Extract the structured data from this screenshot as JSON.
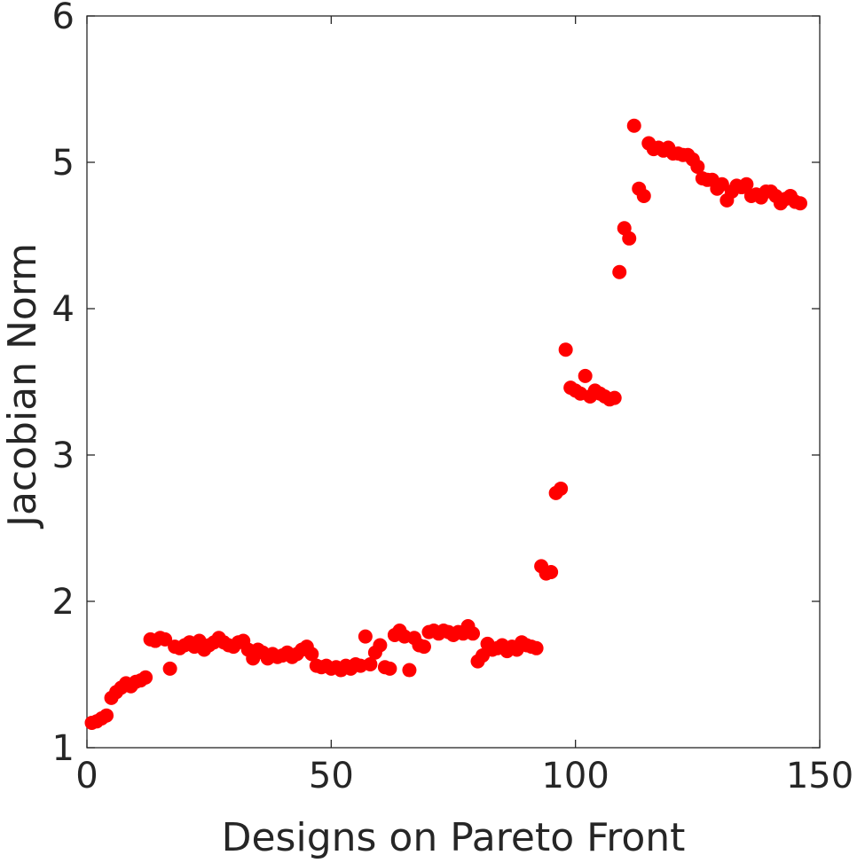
{
  "chart_data": {
    "type": "scatter",
    "title": "",
    "xlabel": "Designs on Pareto Front",
    "ylabel": "Jacobian Norm",
    "xlim": [
      0,
      150
    ],
    "ylim": [
      1,
      6
    ],
    "x_ticks": [
      0,
      50,
      100,
      150
    ],
    "y_ticks": [
      1,
      2,
      3,
      4,
      5,
      6
    ],
    "x_tick_labels": [
      "0",
      "50",
      "100",
      "150"
    ],
    "y_tick_labels": [
      "1",
      "2",
      "3",
      "4",
      "5",
      "6"
    ],
    "grid": false,
    "marker_color": "#ff0000",
    "series": [
      {
        "points": [
          [
            1,
            1.17
          ],
          [
            2,
            1.18
          ],
          [
            3,
            1.2
          ],
          [
            4,
            1.22
          ],
          [
            5,
            1.34
          ],
          [
            6,
            1.38
          ],
          [
            7,
            1.41
          ],
          [
            8,
            1.44
          ],
          [
            9,
            1.42
          ],
          [
            10,
            1.45
          ],
          [
            11,
            1.46
          ],
          [
            12,
            1.48
          ],
          [
            13,
            1.74
          ],
          [
            14,
            1.73
          ],
          [
            15,
            1.75
          ],
          [
            16,
            1.74
          ],
          [
            17,
            1.54
          ],
          [
            18,
            1.69
          ],
          [
            19,
            1.68
          ],
          [
            20,
            1.7
          ],
          [
            21,
            1.72
          ],
          [
            22,
            1.69
          ],
          [
            23,
            1.73
          ],
          [
            24,
            1.67
          ],
          [
            25,
            1.7
          ],
          [
            26,
            1.72
          ],
          [
            27,
            1.75
          ],
          [
            28,
            1.72
          ],
          [
            29,
            1.7
          ],
          [
            30,
            1.69
          ],
          [
            31,
            1.72
          ],
          [
            32,
            1.73
          ],
          [
            33,
            1.67
          ],
          [
            34,
            1.61
          ],
          [
            35,
            1.67
          ],
          [
            36,
            1.65
          ],
          [
            37,
            1.61
          ],
          [
            38,
            1.64
          ],
          [
            39,
            1.62
          ],
          [
            40,
            1.63
          ],
          [
            41,
            1.65
          ],
          [
            42,
            1.62
          ],
          [
            43,
            1.64
          ],
          [
            44,
            1.67
          ],
          [
            45,
            1.69
          ],
          [
            46,
            1.64
          ],
          [
            47,
            1.56
          ],
          [
            48,
            1.55
          ],
          [
            49,
            1.56
          ],
          [
            50,
            1.54
          ],
          [
            51,
            1.55
          ],
          [
            52,
            1.53
          ],
          [
            53,
            1.56
          ],
          [
            54,
            1.54
          ],
          [
            55,
            1.57
          ],
          [
            56,
            1.56
          ],
          [
            57,
            1.76
          ],
          [
            58,
            1.57
          ],
          [
            59,
            1.65
          ],
          [
            60,
            1.7
          ],
          [
            61,
            1.55
          ],
          [
            62,
            1.54
          ],
          [
            63,
            1.77
          ],
          [
            64,
            1.8
          ],
          [
            65,
            1.76
          ],
          [
            66,
            1.53
          ],
          [
            67,
            1.75
          ],
          [
            68,
            1.7
          ],
          [
            69,
            1.69
          ],
          [
            70,
            1.79
          ],
          [
            71,
            1.8
          ],
          [
            72,
            1.78
          ],
          [
            73,
            1.8
          ],
          [
            74,
            1.79
          ],
          [
            75,
            1.77
          ],
          [
            76,
            1.79
          ],
          [
            77,
            1.78
          ],
          [
            78,
            1.83
          ],
          [
            79,
            1.78
          ],
          [
            80,
            1.59
          ],
          [
            81,
            1.63
          ],
          [
            82,
            1.71
          ],
          [
            83,
            1.67
          ],
          [
            84,
            1.68
          ],
          [
            85,
            1.7
          ],
          [
            86,
            1.66
          ],
          [
            87,
            1.69
          ],
          [
            88,
            1.67
          ],
          [
            89,
            1.72
          ],
          [
            90,
            1.7
          ],
          [
            91,
            1.69
          ],
          [
            92,
            1.68
          ],
          [
            93,
            2.24
          ],
          [
            94,
            2.19
          ],
          [
            95,
            2.2
          ],
          [
            96,
            2.74
          ],
          [
            97,
            2.77
          ],
          [
            98,
            3.72
          ],
          [
            99,
            3.46
          ],
          [
            100,
            3.44
          ],
          [
            101,
            3.42
          ],
          [
            102,
            3.54
          ],
          [
            103,
            3.4
          ],
          [
            104,
            3.44
          ],
          [
            105,
            3.42
          ],
          [
            106,
            3.4
          ],
          [
            107,
            3.38
          ],
          [
            108,
            3.39
          ],
          [
            109,
            4.25
          ],
          [
            110,
            4.55
          ],
          [
            111,
            4.48
          ],
          [
            112,
            5.25
          ],
          [
            113,
            4.82
          ],
          [
            114,
            4.77
          ],
          [
            115,
            5.13
          ],
          [
            116,
            5.09
          ],
          [
            117,
            5.1
          ],
          [
            118,
            5.08
          ],
          [
            119,
            5.1
          ],
          [
            120,
            5.06
          ],
          [
            121,
            5.06
          ],
          [
            122,
            5.05
          ],
          [
            123,
            5.05
          ],
          [
            124,
            5.02
          ],
          [
            125,
            4.97
          ],
          [
            126,
            4.89
          ],
          [
            127,
            4.88
          ],
          [
            128,
            4.88
          ],
          [
            129,
            4.82
          ],
          [
            130,
            4.85
          ],
          [
            131,
            4.74
          ],
          [
            132,
            4.8
          ],
          [
            133,
            4.84
          ],
          [
            134,
            4.83
          ],
          [
            135,
            4.85
          ],
          [
            136,
            4.77
          ],
          [
            137,
            4.78
          ],
          [
            138,
            4.76
          ],
          [
            139,
            4.8
          ],
          [
            140,
            4.8
          ],
          [
            141,
            4.77
          ],
          [
            142,
            4.72
          ],
          [
            143,
            4.75
          ],
          [
            144,
            4.77
          ],
          [
            145,
            4.73
          ],
          [
            146,
            4.72
          ]
        ]
      }
    ]
  }
}
